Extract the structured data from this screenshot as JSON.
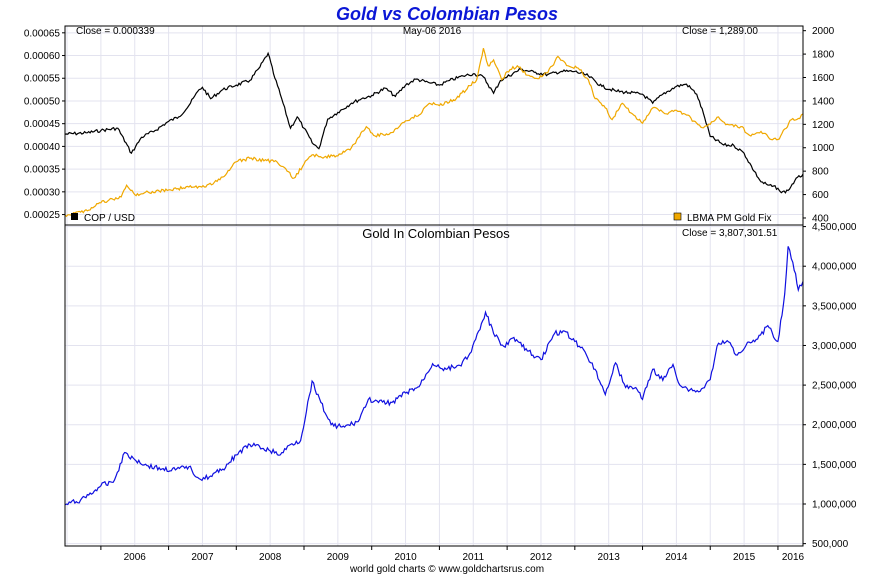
{
  "title": "Gold vs Colombian Pesos",
  "footer": "world gold charts © www.goldchartsrus.com",
  "colors": {
    "title": "#0b17d6",
    "cop": "#000000",
    "gold": "#f0a800",
    "blue": "#1010e0"
  },
  "chart_data": [
    {
      "type": "line",
      "header_left": "Close = 0.000339",
      "header_center": "May-06  2016",
      "header_right": "Close = 1,289.00",
      "x_range": [
        2005.47,
        2016.37
      ],
      "y_left_ticks": [
        "0.00025",
        "0.00030",
        "0.00035",
        "0.00040",
        "0.00045",
        "0.00050",
        "0.00055",
        "0.00060",
        "0.00065"
      ],
      "y_left_range": [
        0.000227,
        0.000665
      ],
      "y_right_ticks": [
        "400",
        "600",
        "800",
        "1000",
        "1200",
        "1400",
        "1600",
        "1800",
        "2000"
      ],
      "y_right_range": [
        340,
        2040
      ],
      "series": [
        {
          "name": "COP / USD",
          "axis": "left",
          "color": "#000000",
          "points": [
            [
              2005.47,
              0.000427
            ],
            [
              2005.8,
              0.00043
            ],
            [
              2006.0,
              0.000435
            ],
            [
              2006.25,
              0.00044
            ],
            [
              2006.45,
              0.000385
            ],
            [
              2006.6,
              0.00042
            ],
            [
              2006.8,
              0.000435
            ],
            [
              2007.0,
              0.000455
            ],
            [
              2007.15,
              0.000465
            ],
            [
              2007.3,
              0.00049
            ],
            [
              2007.45,
              0.000525
            ],
            [
              2007.5,
              0.00053
            ],
            [
              2007.62,
              0.000505
            ],
            [
              2007.8,
              0.000525
            ],
            [
              2008.0,
              0.000535
            ],
            [
              2008.2,
              0.000545
            ],
            [
              2008.35,
              0.000575
            ],
            [
              2008.47,
              0.000605
            ],
            [
              2008.55,
              0.00056
            ],
            [
              2008.67,
              0.000505
            ],
            [
              2008.8,
              0.00044
            ],
            [
              2008.9,
              0.000465
            ],
            [
              2009.0,
              0.00044
            ],
            [
              2009.12,
              0.000408
            ],
            [
              2009.22,
              0.000395
            ],
            [
              2009.35,
              0.00046
            ],
            [
              2009.5,
              0.000475
            ],
            [
              2009.7,
              0.000495
            ],
            [
              2009.85,
              0.000505
            ],
            [
              2010.0,
              0.000512
            ],
            [
              2010.2,
              0.000528
            ],
            [
              2010.35,
              0.00051
            ],
            [
              2010.5,
              0.000535
            ],
            [
              2010.65,
              0.000548
            ],
            [
              2010.85,
              0.00054
            ],
            [
              2011.0,
              0.000535
            ],
            [
              2011.15,
              0.000545
            ],
            [
              2011.35,
              0.000555
            ],
            [
              2011.5,
              0.00056
            ],
            [
              2011.65,
              0.000553
            ],
            [
              2011.8,
              0.000517
            ],
            [
              2011.9,
              0.000545
            ],
            [
              2012.0,
              0.000553
            ],
            [
              2012.2,
              0.00057
            ],
            [
              2012.4,
              0.000563
            ],
            [
              2012.6,
              0.000558
            ],
            [
              2012.8,
              0.000565
            ],
            [
              2013.0,
              0.000565
            ],
            [
              2013.2,
              0.000555
            ],
            [
              2013.4,
              0.000532
            ],
            [
              2013.6,
              0.000522
            ],
            [
              2013.8,
              0.000518
            ],
            [
              2014.0,
              0.000515
            ],
            [
              2014.15,
              0.000495
            ],
            [
              2014.3,
              0.000515
            ],
            [
              2014.5,
              0.000532
            ],
            [
              2014.65,
              0.000537
            ],
            [
              2014.8,
              0.000515
            ],
            [
              2014.9,
              0.000472
            ],
            [
              2015.0,
              0.000422
            ],
            [
              2015.2,
              0.000403
            ],
            [
              2015.35,
              0.000402
            ],
            [
              2015.5,
              0.000385
            ],
            [
              2015.65,
              0.000345
            ],
            [
              2015.75,
              0.000322
            ],
            [
              2015.85,
              0.000315
            ],
            [
              2016.0,
              0.000308
            ],
            [
              2016.05,
              0.000298
            ],
            [
              2016.15,
              0.000303
            ],
            [
              2016.25,
              0.000325
            ],
            [
              2016.37,
              0.000339
            ]
          ]
        },
        {
          "name": "LBMA PM Gold Fix",
          "axis": "right",
          "color": "#f0a800",
          "points": [
            [
              2005.47,
              425
            ],
            [
              2005.7,
              450
            ],
            [
              2005.9,
              495
            ],
            [
              2006.0,
              530
            ],
            [
              2006.3,
              580
            ],
            [
              2006.38,
              680
            ],
            [
              2006.5,
              600
            ],
            [
              2006.7,
              620
            ],
            [
              2007.0,
              640
            ],
            [
              2007.3,
              665
            ],
            [
              2007.55,
              665
            ],
            [
              2007.8,
              750
            ],
            [
              2008.0,
              880
            ],
            [
              2008.2,
              910
            ],
            [
              2008.45,
              890
            ],
            [
              2008.6,
              880
            ],
            [
              2008.75,
              800
            ],
            [
              2008.85,
              740
            ],
            [
              2009.0,
              860
            ],
            [
              2009.12,
              940
            ],
            [
              2009.3,
              920
            ],
            [
              2009.5,
              930
            ],
            [
              2009.7,
              1000
            ],
            [
              2009.92,
              1180
            ],
            [
              2010.05,
              1100
            ],
            [
              2010.3,
              1130
            ],
            [
              2010.5,
              1230
            ],
            [
              2010.7,
              1280
            ],
            [
              2010.85,
              1380
            ],
            [
              2011.0,
              1360
            ],
            [
              2011.25,
              1420
            ],
            [
              2011.45,
              1530
            ],
            [
              2011.55,
              1580
            ],
            [
              2011.65,
              1850
            ],
            [
              2011.72,
              1700
            ],
            [
              2011.8,
              1750
            ],
            [
              2011.92,
              1580
            ],
            [
              2012.0,
              1650
            ],
            [
              2012.15,
              1700
            ],
            [
              2012.3,
              1620
            ],
            [
              2012.45,
              1590
            ],
            [
              2012.6,
              1640
            ],
            [
              2012.75,
              1780
            ],
            [
              2012.9,
              1700
            ],
            [
              2013.05,
              1680
            ],
            [
              2013.2,
              1580
            ],
            [
              2013.3,
              1420
            ],
            [
              2013.45,
              1340
            ],
            [
              2013.55,
              1240
            ],
            [
              2013.7,
              1380
            ],
            [
              2013.85,
              1290
            ],
            [
              2014.0,
              1210
            ],
            [
              2014.15,
              1340
            ],
            [
              2014.35,
              1290
            ],
            [
              2014.5,
              1320
            ],
            [
              2014.65,
              1280
            ],
            [
              2014.8,
              1210
            ],
            [
              2014.9,
              1170
            ],
            [
              2015.0,
              1200
            ],
            [
              2015.1,
              1260
            ],
            [
              2015.25,
              1200
            ],
            [
              2015.45,
              1180
            ],
            [
              2015.6,
              1100
            ],
            [
              2015.75,
              1140
            ],
            [
              2015.9,
              1070
            ],
            [
              2016.0,
              1070
            ],
            [
              2016.1,
              1160
            ],
            [
              2016.2,
              1240
            ],
            [
              2016.3,
              1250
            ],
            [
              2016.37,
              1289
            ]
          ]
        }
      ],
      "legend": [
        {
          "label": "COP / USD",
          "color": "#000000",
          "position": "bottom-left"
        },
        {
          "label": "LBMA PM Gold Fix",
          "color": "#f0a800",
          "position": "bottom-right"
        }
      ],
      "grid": true
    },
    {
      "type": "line",
      "title": "Gold In Colombian Pesos",
      "header_right": "Close = 3,807,301.51",
      "x_categories": [
        "2006",
        "2007",
        "2008",
        "2009",
        "2010",
        "2011",
        "2012",
        "2013",
        "2014",
        "2015",
        "2016"
      ],
      "x_range": [
        2005.47,
        2016.37
      ],
      "y_ticks": [
        "500,000",
        "1,000,000",
        "1,500,000",
        "2,000,000",
        "2,500,000",
        "3,000,000",
        "3,500,000",
        "4,000,000",
        "4,500,000"
      ],
      "y_range": [
        470000,
        4520000
      ],
      "series": [
        {
          "color": "#1010e0",
          "points": [
            [
              2005.47,
              990000
            ],
            [
              2005.7,
              1050000
            ],
            [
              2005.9,
              1160000
            ],
            [
              2006.0,
              1230000
            ],
            [
              2006.2,
              1300000
            ],
            [
              2006.35,
              1650000
            ],
            [
              2006.5,
              1560000
            ],
            [
              2006.7,
              1480000
            ],
            [
              2006.9,
              1440000
            ],
            [
              2007.1,
              1430000
            ],
            [
              2007.3,
              1470000
            ],
            [
              2007.45,
              1320000
            ],
            [
              2007.6,
              1340000
            ],
            [
              2007.8,
              1440000
            ],
            [
              2008.0,
              1620000
            ],
            [
              2008.2,
              1750000
            ],
            [
              2008.4,
              1700000
            ],
            [
              2008.5,
              1670000
            ],
            [
              2008.65,
              1620000
            ],
            [
              2008.8,
              1750000
            ],
            [
              2008.95,
              1800000
            ],
            [
              2009.12,
              2550000
            ],
            [
              2009.25,
              2280000
            ],
            [
              2009.4,
              2000000
            ],
            [
              2009.6,
              1970000
            ],
            [
              2009.8,
              2040000
            ],
            [
              2009.95,
              2320000
            ],
            [
              2010.1,
              2280000
            ],
            [
              2010.3,
              2280000
            ],
            [
              2010.5,
              2400000
            ],
            [
              2010.7,
              2480000
            ],
            [
              2010.9,
              2770000
            ],
            [
              2011.1,
              2700000
            ],
            [
              2011.3,
              2750000
            ],
            [
              2011.45,
              2900000
            ],
            [
              2011.6,
              3200000
            ],
            [
              2011.68,
              3420000
            ],
            [
              2011.8,
              3150000
            ],
            [
              2011.95,
              2990000
            ],
            [
              2012.1,
              3100000
            ],
            [
              2012.3,
              2930000
            ],
            [
              2012.5,
              2820000
            ],
            [
              2012.7,
              3150000
            ],
            [
              2012.85,
              3180000
            ],
            [
              2013.0,
              3050000
            ],
            [
              2013.15,
              2920000
            ],
            [
              2013.3,
              2700000
            ],
            [
              2013.45,
              2380000
            ],
            [
              2013.6,
              2780000
            ],
            [
              2013.75,
              2470000
            ],
            [
              2013.9,
              2470000
            ],
            [
              2014.0,
              2320000
            ],
            [
              2014.15,
              2700000
            ],
            [
              2014.3,
              2560000
            ],
            [
              2014.45,
              2760000
            ],
            [
              2014.55,
              2500000
            ],
            [
              2014.7,
              2440000
            ],
            [
              2014.85,
              2420000
            ],
            [
              2015.0,
              2570000
            ],
            [
              2015.1,
              2990000
            ],
            [
              2015.25,
              3060000
            ],
            [
              2015.4,
              2880000
            ],
            [
              2015.55,
              3040000
            ],
            [
              2015.7,
              3080000
            ],
            [
              2015.85,
              3250000
            ],
            [
              2016.0,
              3050000
            ],
            [
              2016.1,
              3650000
            ],
            [
              2016.15,
              4250000
            ],
            [
              2016.22,
              4050000
            ],
            [
              2016.3,
              3700000
            ],
            [
              2016.37,
              3807301
            ]
          ]
        }
      ],
      "grid": true
    }
  ]
}
